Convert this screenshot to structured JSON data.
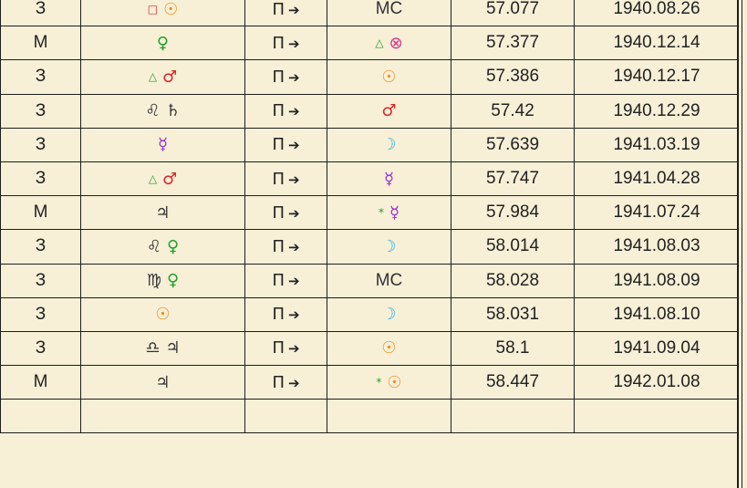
{
  "colors": {
    "red": "#d9262b",
    "orange": "#f08c1e",
    "green": "#1fa02a",
    "purple": "#9b2fd6",
    "cyan": "#2ab4f0",
    "magenta": "#d0338c",
    "dark": "#333333"
  },
  "rows": [
    {
      "type": "З",
      "from": [
        {
          "g": "□",
          "c": "red",
          "cls": "asp"
        },
        {
          "g": "☉",
          "c": "orange"
        }
      ],
      "dir": "П",
      "arrow": "➔",
      "to": [
        {
          "g": "MC",
          "c": "dark"
        }
      ],
      "age": "57.077",
      "date": "1940.08.26"
    },
    {
      "type": "М",
      "from": [
        {
          "g": "♀",
          "c": "green"
        }
      ],
      "dir": "П",
      "arrow": "➔",
      "to": [
        {
          "g": "△",
          "c": "green",
          "cls": "asp"
        },
        {
          "g": "⊗",
          "c": "magenta"
        }
      ],
      "age": "57.377",
      "date": "1940.12.14"
    },
    {
      "type": "З",
      "from": [
        {
          "g": "△",
          "c": "green",
          "cls": "asp"
        },
        {
          "g": "♂",
          "c": "red"
        }
      ],
      "dir": "П",
      "arrow": "➔",
      "to": [
        {
          "g": "☉",
          "c": "orange"
        }
      ],
      "age": "57.386",
      "date": "1940.12.17"
    },
    {
      "type": "З",
      "from": [
        {
          "g": "♌",
          "c": "dark"
        },
        {
          "g": "♄",
          "c": "dark"
        }
      ],
      "dir": "П",
      "arrow": "➔",
      "to": [
        {
          "g": "♂",
          "c": "red"
        }
      ],
      "age": "57.42",
      "date": "1940.12.29"
    },
    {
      "type": "З",
      "from": [
        {
          "g": "☿",
          "c": "purple"
        }
      ],
      "dir": "П",
      "arrow": "➔",
      "to": [
        {
          "g": "☽",
          "c": "cyan"
        }
      ],
      "age": "57.639",
      "date": "1941.03.19"
    },
    {
      "type": "З",
      "from": [
        {
          "g": "△",
          "c": "green",
          "cls": "asp"
        },
        {
          "g": "♂",
          "c": "red"
        }
      ],
      "dir": "П",
      "arrow": "➔",
      "to": [
        {
          "g": "☿",
          "c": "purple"
        }
      ],
      "age": "57.747",
      "date": "1941.04.28"
    },
    {
      "type": "М",
      "from": [
        {
          "g": "♃",
          "c": "dark"
        }
      ],
      "dir": "П",
      "arrow": "➔",
      "to": [
        {
          "g": "*",
          "c": "green",
          "cls": "asp"
        },
        {
          "g": "☿",
          "c": "purple"
        }
      ],
      "age": "57.984",
      "date": "1941.07.24"
    },
    {
      "type": "З",
      "from": [
        {
          "g": "♌",
          "c": "dark"
        },
        {
          "g": "♀",
          "c": "green"
        }
      ],
      "dir": "П",
      "arrow": "➔",
      "to": [
        {
          "g": "☽",
          "c": "cyan"
        }
      ],
      "age": "58.014",
      "date": "1941.08.03"
    },
    {
      "type": "З",
      "from": [
        {
          "g": "♍",
          "c": "dark"
        },
        {
          "g": "♀",
          "c": "green"
        }
      ],
      "dir": "П",
      "arrow": "➔",
      "to": [
        {
          "g": "MC",
          "c": "dark"
        }
      ],
      "age": "58.028",
      "date": "1941.08.09"
    },
    {
      "type": "З",
      "from": [
        {
          "g": "☉",
          "c": "orange"
        }
      ],
      "dir": "П",
      "arrow": "➔",
      "to": [
        {
          "g": "☽",
          "c": "cyan"
        }
      ],
      "age": "58.031",
      "date": "1941.08.10"
    },
    {
      "type": "З",
      "from": [
        {
          "g": "♎",
          "c": "dark"
        },
        {
          "g": "♃",
          "c": "dark"
        }
      ],
      "dir": "П",
      "arrow": "➔",
      "to": [
        {
          "g": "☉",
          "c": "orange"
        }
      ],
      "age": "58.1",
      "date": "1941.09.04"
    },
    {
      "type": "М",
      "from": [
        {
          "g": "♃",
          "c": "dark"
        }
      ],
      "dir": "П",
      "arrow": "➔",
      "to": [
        {
          "g": "*",
          "c": "green",
          "cls": "asp"
        },
        {
          "g": "☉",
          "c": "orange"
        }
      ],
      "age": "58.447",
      "date": "1942.01.08"
    },
    {
      "type": "",
      "from": [],
      "dir": "",
      "arrow": "",
      "to": [],
      "age": "",
      "date": ""
    }
  ]
}
